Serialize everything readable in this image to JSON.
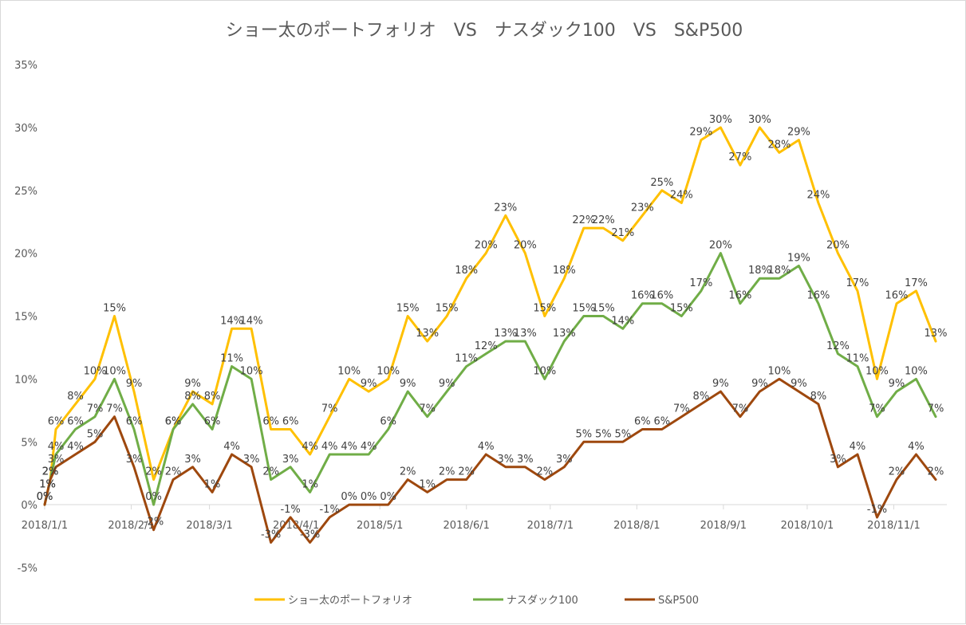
{
  "chart_data": {
    "type": "line",
    "title": "ショー太のポートフォリオ　VS　ナスダック100　VS　S&P500",
    "xlabel": "",
    "ylabel": "",
    "ylim": [
      -5,
      35
    ],
    "y_ticks": [
      "35%",
      "30%",
      "25%",
      "20%",
      "15%",
      "10%",
      "5%",
      "0%",
      "-5%"
    ],
    "x_ticks": [
      "2018/1/1",
      "2018/2/1",
      "2018/3/1",
      "2018/4/1",
      "2018/5/1",
      "2018/6/1",
      "2018/7/1",
      "2018/8/1",
      "2018/9/1",
      "2018/10/1",
      "2018/11/1"
    ],
    "x_range": [
      "2018-01-01",
      "2018-11-20"
    ],
    "legend_position": "bottom",
    "grid": false,
    "series": [
      {
        "name": "ショー太のポートフォリオ",
        "color": "#FFC000",
        "data": [
          [
            "2018-01-01",
            0
          ],
          [
            "2018-01-02",
            1
          ],
          [
            "2018-01-03",
            2
          ],
          [
            "2018-01-05",
            6
          ],
          [
            "2018-01-12",
            8
          ],
          [
            "2018-01-19",
            10
          ],
          [
            "2018-01-26",
            15
          ],
          [
            "2018-02-02",
            9
          ],
          [
            "2018-02-09",
            2
          ],
          [
            "2018-02-16",
            6
          ],
          [
            "2018-02-23",
            9
          ],
          [
            "2018-03-02",
            8
          ],
          [
            "2018-03-09",
            14
          ],
          [
            "2018-03-16",
            14
          ],
          [
            "2018-03-23",
            6
          ],
          [
            "2018-03-30",
            6
          ],
          [
            "2018-04-06",
            4
          ],
          [
            "2018-04-13",
            7
          ],
          [
            "2018-04-20",
            10
          ],
          [
            "2018-04-27",
            9
          ],
          [
            "2018-05-04",
            10
          ],
          [
            "2018-05-11",
            15
          ],
          [
            "2018-05-18",
            13
          ],
          [
            "2018-05-25",
            15
          ],
          [
            "2018-06-01",
            18
          ],
          [
            "2018-06-08",
            20
          ],
          [
            "2018-06-15",
            23
          ],
          [
            "2018-06-22",
            20
          ],
          [
            "2018-06-29",
            15
          ],
          [
            "2018-07-06",
            18
          ],
          [
            "2018-07-13",
            22
          ],
          [
            "2018-07-20",
            22
          ],
          [
            "2018-07-27",
            21
          ],
          [
            "2018-08-03",
            23
          ],
          [
            "2018-08-10",
            25
          ],
          [
            "2018-08-17",
            24
          ],
          [
            "2018-08-24",
            29
          ],
          [
            "2018-08-31",
            30
          ],
          [
            "2018-09-07",
            27
          ],
          [
            "2018-09-14",
            30
          ],
          [
            "2018-09-21",
            28
          ],
          [
            "2018-09-28",
            29
          ],
          [
            "2018-10-05",
            24
          ],
          [
            "2018-10-12",
            20
          ],
          [
            "2018-10-19",
            17
          ],
          [
            "2018-10-26",
            10
          ],
          [
            "2018-11-02",
            16
          ],
          [
            "2018-11-09",
            17
          ],
          [
            "2018-11-16",
            13
          ]
        ]
      },
      {
        "name": "ナスダック100",
        "color": "#70AD47",
        "data": [
          [
            "2018-01-01",
            0
          ],
          [
            "2018-01-02",
            1
          ],
          [
            "2018-01-03",
            2
          ],
          [
            "2018-01-05",
            4
          ],
          [
            "2018-01-12",
            6
          ],
          [
            "2018-01-19",
            7
          ],
          [
            "2018-01-26",
            10
          ],
          [
            "2018-02-02",
            6
          ],
          [
            "2018-02-09",
            0
          ],
          [
            "2018-02-16",
            6
          ],
          [
            "2018-02-23",
            8
          ],
          [
            "2018-03-02",
            6
          ],
          [
            "2018-03-09",
            11
          ],
          [
            "2018-03-16",
            10
          ],
          [
            "2018-03-23",
            2
          ],
          [
            "2018-03-30",
            3
          ],
          [
            "2018-04-06",
            1
          ],
          [
            "2018-04-13",
            4
          ],
          [
            "2018-04-20",
            4
          ],
          [
            "2018-04-27",
            4
          ],
          [
            "2018-05-04",
            6
          ],
          [
            "2018-05-11",
            9
          ],
          [
            "2018-05-18",
            7
          ],
          [
            "2018-05-25",
            9
          ],
          [
            "2018-06-01",
            11
          ],
          [
            "2018-06-08",
            12
          ],
          [
            "2018-06-15",
            13
          ],
          [
            "2018-06-22",
            13
          ],
          [
            "2018-06-29",
            10
          ],
          [
            "2018-07-06",
            13
          ],
          [
            "2018-07-13",
            15
          ],
          [
            "2018-07-20",
            15
          ],
          [
            "2018-07-27",
            14
          ],
          [
            "2018-08-03",
            16
          ],
          [
            "2018-08-10",
            16
          ],
          [
            "2018-08-17",
            15
          ],
          [
            "2018-08-24",
            17
          ],
          [
            "2018-08-31",
            20
          ],
          [
            "2018-09-07",
            16
          ],
          [
            "2018-09-14",
            18
          ],
          [
            "2018-09-21",
            18
          ],
          [
            "2018-09-28",
            19
          ],
          [
            "2018-10-05",
            16
          ],
          [
            "2018-10-12",
            12
          ],
          [
            "2018-10-19",
            11
          ],
          [
            "2018-10-26",
            7
          ],
          [
            "2018-11-02",
            9
          ],
          [
            "2018-11-09",
            10
          ],
          [
            "2018-11-16",
            7
          ]
        ]
      },
      {
        "name": "S&P500",
        "color": "#9E480E",
        "data": [
          [
            "2018-01-01",
            0
          ],
          [
            "2018-01-02",
            1
          ],
          [
            "2018-01-03",
            2
          ],
          [
            "2018-01-05",
            3
          ],
          [
            "2018-01-12",
            4
          ],
          [
            "2018-01-19",
            5
          ],
          [
            "2018-01-26",
            7
          ],
          [
            "2018-02-02",
            3
          ],
          [
            "2018-02-09",
            -2
          ],
          [
            "2018-02-16",
            2
          ],
          [
            "2018-02-23",
            3
          ],
          [
            "2018-03-02",
            1
          ],
          [
            "2018-03-09",
            4
          ],
          [
            "2018-03-16",
            3
          ],
          [
            "2018-03-23",
            -3
          ],
          [
            "2018-03-30",
            -1
          ],
          [
            "2018-04-06",
            -3
          ],
          [
            "2018-04-13",
            -1
          ],
          [
            "2018-04-20",
            0
          ],
          [
            "2018-04-27",
            0
          ],
          [
            "2018-05-04",
            0
          ],
          [
            "2018-05-11",
            2
          ],
          [
            "2018-05-18",
            1
          ],
          [
            "2018-05-25",
            2
          ],
          [
            "2018-06-01",
            2
          ],
          [
            "2018-06-08",
            4
          ],
          [
            "2018-06-15",
            3
          ],
          [
            "2018-06-22",
            3
          ],
          [
            "2018-06-29",
            2
          ],
          [
            "2018-07-06",
            3
          ],
          [
            "2018-07-13",
            5
          ],
          [
            "2018-07-20",
            5
          ],
          [
            "2018-07-27",
            5
          ],
          [
            "2018-08-03",
            6
          ],
          [
            "2018-08-10",
            6
          ],
          [
            "2018-08-17",
            7
          ],
          [
            "2018-08-24",
            8
          ],
          [
            "2018-08-31",
            9
          ],
          [
            "2018-09-07",
            7
          ],
          [
            "2018-09-14",
            9
          ],
          [
            "2018-09-21",
            10
          ],
          [
            "2018-09-28",
            9
          ],
          [
            "2018-10-05",
            8
          ],
          [
            "2018-10-12",
            3
          ],
          [
            "2018-10-19",
            4
          ],
          [
            "2018-10-26",
            -1
          ],
          [
            "2018-11-02",
            2
          ],
          [
            "2018-11-09",
            4
          ],
          [
            "2018-11-16",
            2
          ]
        ]
      }
    ]
  }
}
